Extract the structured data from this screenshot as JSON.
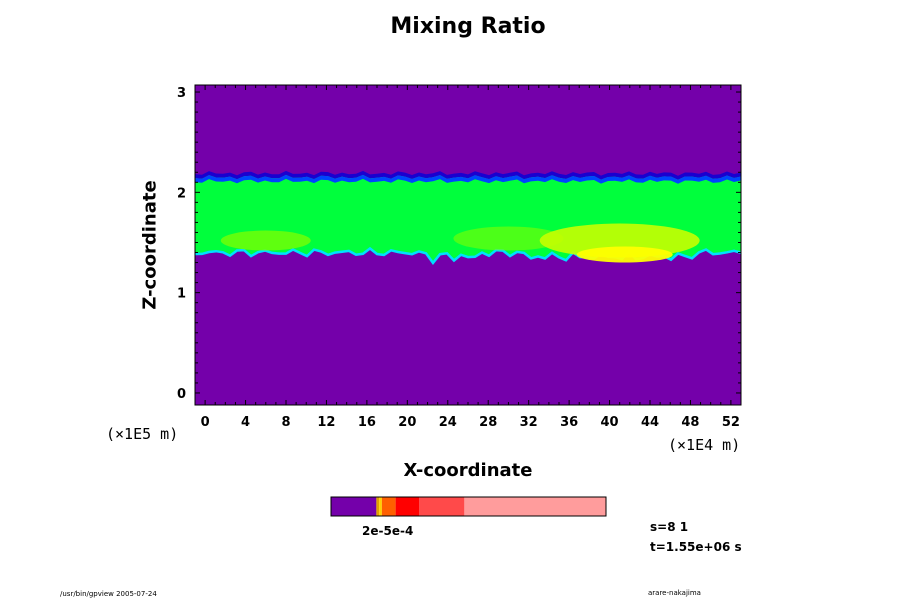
{
  "chart_data": {
    "type": "heatmap",
    "title": "Mixing Ratio",
    "xlabel": "X-coordinate",
    "ylabel": "Z-coordinate",
    "x_unit": "(×1E4 m)",
    "y_unit": "(×1E5 m)",
    "xlim": [
      -1,
      53
    ],
    "ylim": [
      -0.12,
      3.07
    ],
    "x_ticks": [
      0,
      4,
      8,
      12,
      16,
      20,
      24,
      28,
      32,
      36,
      40,
      44,
      48,
      52
    ],
    "y_ticks": [
      0,
      1,
      2,
      3
    ],
    "x_tick_labels": [
      "0",
      "4",
      "8",
      "12",
      "16",
      "20",
      "24",
      "28",
      "32",
      "36",
      "40",
      "44",
      "48",
      "52"
    ],
    "y_tick_labels": [
      "0",
      "1",
      "2",
      "3"
    ],
    "layer": {
      "z_bottom": 1.4,
      "z_top": 2.15
    },
    "colorbar": {
      "label_text": "2e-5e-4",
      "bins": [
        {
          "color": "#7400aa",
          "fraction": 0.165
        },
        {
          "color": "#e0a000",
          "fraction": 0.01
        },
        {
          "color": "#ffd000",
          "fraction": 0.01
        },
        {
          "color": "#ff6000",
          "fraction": 0.05
        },
        {
          "color": "#ff0000",
          "fraction": 0.085
        },
        {
          "color": "#ff4a4a",
          "fraction": 0.165
        },
        {
          "color": "#ff9c9c",
          "fraction": 0.515
        }
      ]
    },
    "colors": {
      "background": "#7400aa",
      "layer": "#00ff3c",
      "layer_light": "#7fff00",
      "top_edge": "#0044ff",
      "bottom_edge": "#00e0ff",
      "hot": "#ffff00",
      "warm": "#c6ff00"
    }
  },
  "info": {
    "s_text": "s=8 1",
    "t_text": "t=1.55e+06 s"
  },
  "footer": {
    "left": "/usr/bin/gpview 2005-07-24",
    "right": "arare-nakajima"
  }
}
